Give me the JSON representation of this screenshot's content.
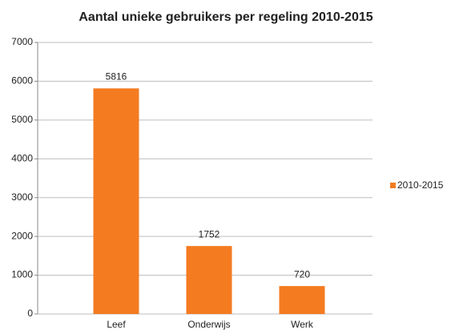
{
  "chart_data": {
    "type": "bar",
    "title": "Aantal unieke gebruikers per regeling 2010-2015",
    "categories": [
      "Leef",
      "Onderwijs",
      "Werk"
    ],
    "series": [
      {
        "name": "2010-2015",
        "color": "#f47b20",
        "values": [
          5816,
          1752,
          720
        ]
      }
    ],
    "ylim": [
      0,
      7000
    ],
    "yticks": [
      0,
      1000,
      2000,
      3000,
      4000,
      5000,
      6000,
      7000
    ],
    "grid": true,
    "legend": "right",
    "data_labels": true
  }
}
